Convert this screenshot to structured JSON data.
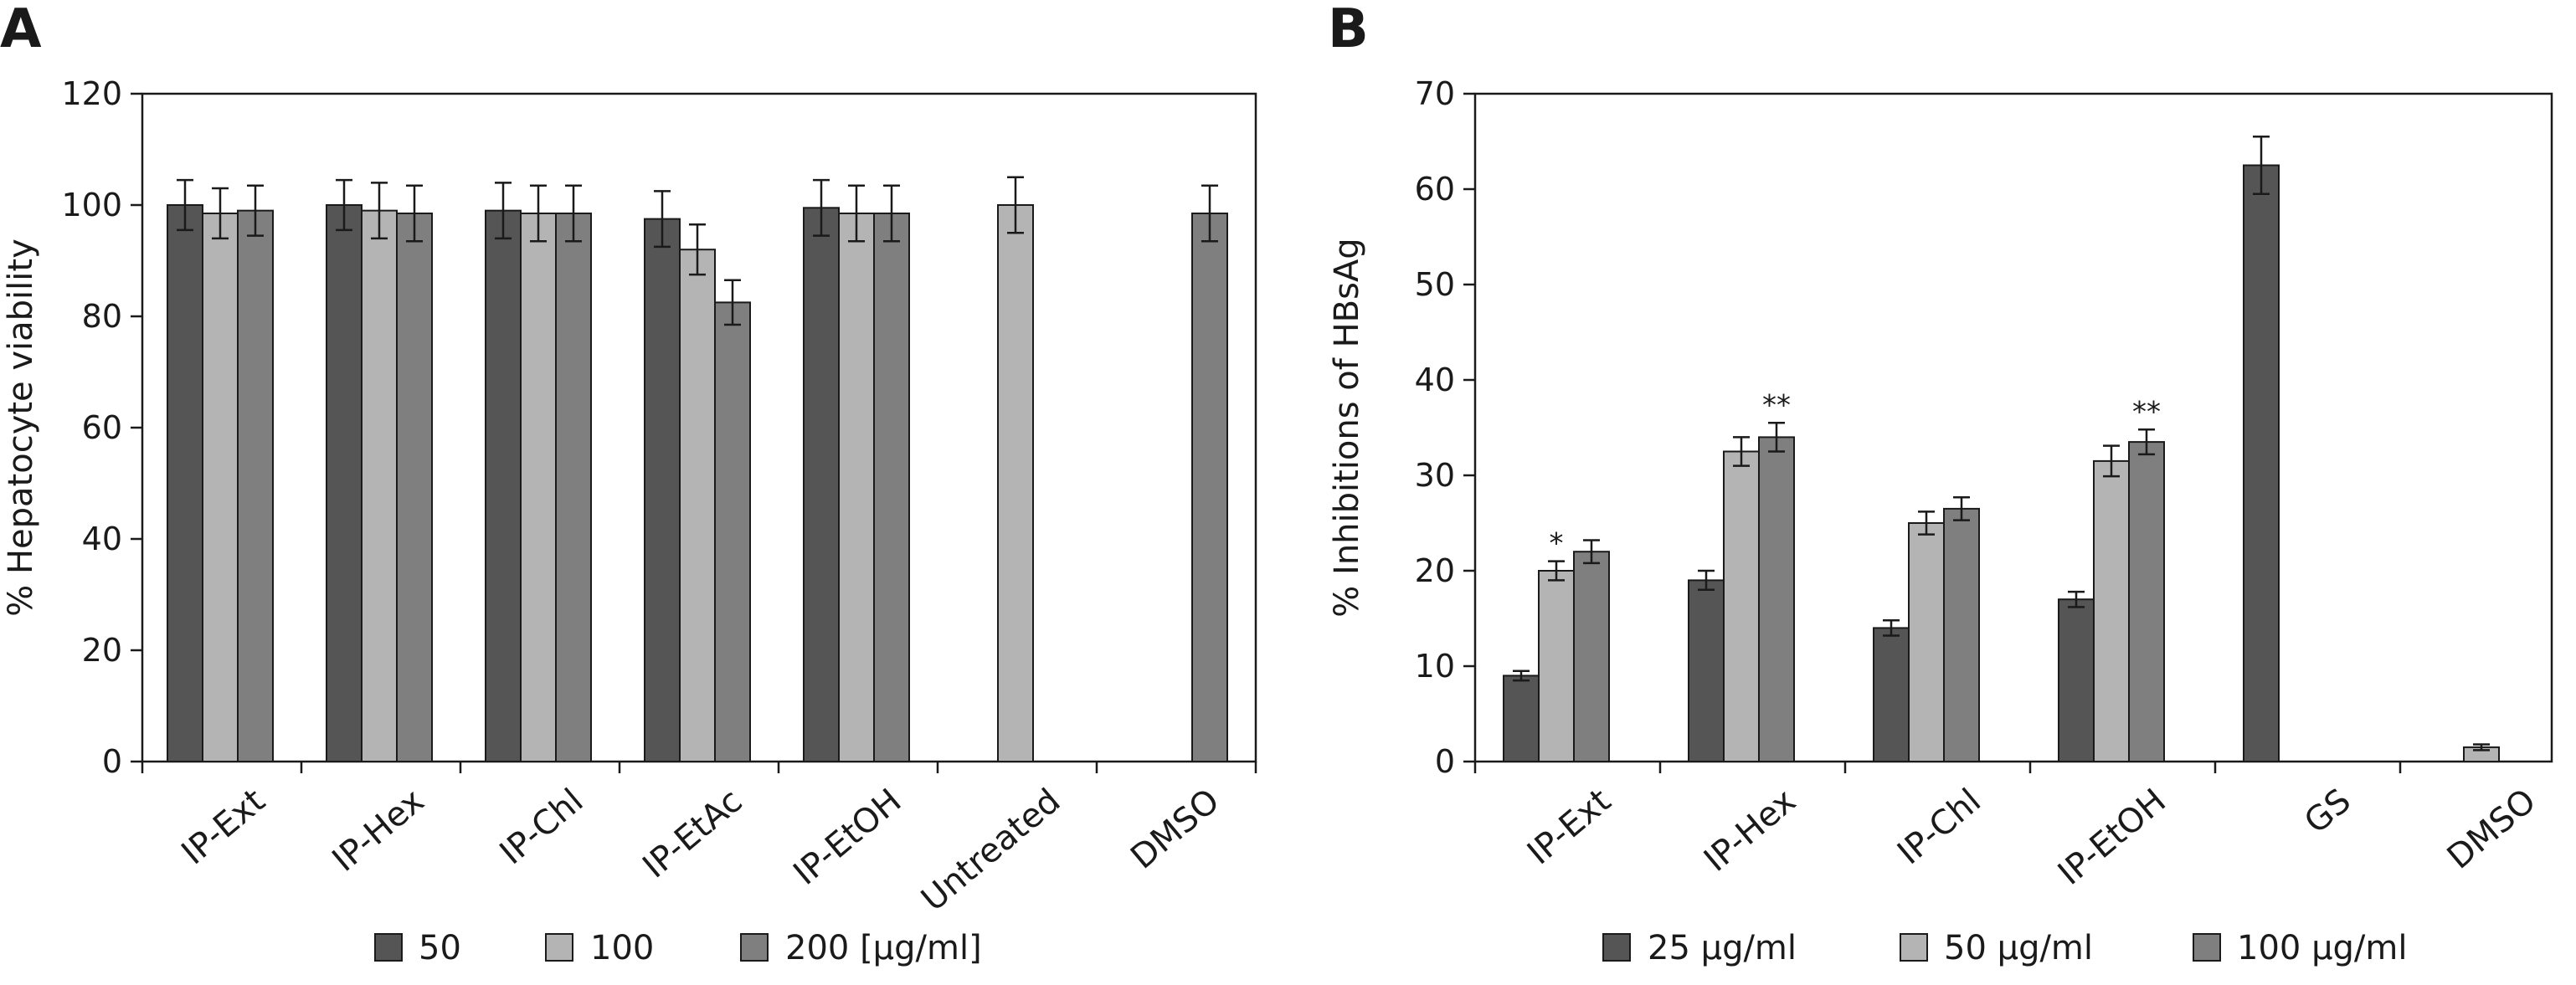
{
  "colors": {
    "series_dark": "#555555",
    "series_light": "#b4b4b4",
    "series_mid": "#7f7f7f",
    "axis": "#1a1a1a"
  },
  "chart_data": [
    {
      "panel_label": "A",
      "type": "bar",
      "ylabel": "% Hepatocyte viability",
      "ylim": [
        0,
        120
      ],
      "yticks": [
        0,
        20,
        40,
        60,
        80,
        100,
        120
      ],
      "categories": [
        "IP-Ext",
        "IP-Hex",
        "IP-Chl",
        "IP-EtAc",
        "IP-EtOH",
        "Untreated",
        "DMSO"
      ],
      "legend_suffix": "[µg/ml]",
      "series": [
        {
          "name": "50",
          "values": [
            100,
            100,
            99,
            97.5,
            99.5,
            null,
            null
          ],
          "errors": [
            4.5,
            4.5,
            5,
            5,
            5,
            null,
            null
          ]
        },
        {
          "name": "100",
          "values": [
            98.5,
            99,
            98.5,
            92,
            98.5,
            100,
            null
          ],
          "errors": [
            4.5,
            5,
            5,
            4.5,
            5,
            5,
            null
          ]
        },
        {
          "name": "200 [µg/ml]",
          "values": [
            99,
            98.5,
            98.5,
            82.5,
            98.5,
            null,
            98.5
          ],
          "errors": [
            4.5,
            5,
            5,
            4,
            5,
            null,
            5
          ]
        }
      ],
      "annotations": [],
      "legend_position": "bottom"
    },
    {
      "panel_label": "B",
      "type": "bar",
      "ylabel": "% Inhibitions of HBsAg",
      "ylim": [
        0,
        70
      ],
      "yticks": [
        0,
        10,
        20,
        30,
        40,
        50,
        60,
        70
      ],
      "categories": [
        "IP-Ext",
        "IP-Hex",
        "IP-Chl",
        "IP-EtOH",
        "GS",
        "DMSO"
      ],
      "series": [
        {
          "name": "25 µg/ml",
          "values": [
            9,
            19,
            14,
            17,
            62.5,
            null
          ],
          "errors": [
            0.5,
            1,
            0.8,
            0.8,
            3,
            null
          ]
        },
        {
          "name": "50 µg/ml",
          "values": [
            20,
            32.5,
            25,
            31.5,
            null,
            1.5
          ],
          "errors": [
            1,
            1.5,
            1.2,
            1.6,
            null,
            0.3
          ]
        },
        {
          "name": "100 µg/ml",
          "values": [
            22,
            34,
            26.5,
            33.5,
            null,
            null
          ],
          "errors": [
            1.2,
            1.5,
            1.2,
            1.3,
            null,
            null
          ]
        }
      ],
      "annotations": [
        {
          "category": "IP-Ext",
          "series": "50 µg/ml",
          "text": "*"
        },
        {
          "category": "IP-Hex",
          "series": "100 µg/ml",
          "text": "**"
        },
        {
          "category": "IP-EtOH",
          "series": "100 µg/ml",
          "text": "**"
        }
      ],
      "legend_position": "bottom"
    }
  ]
}
